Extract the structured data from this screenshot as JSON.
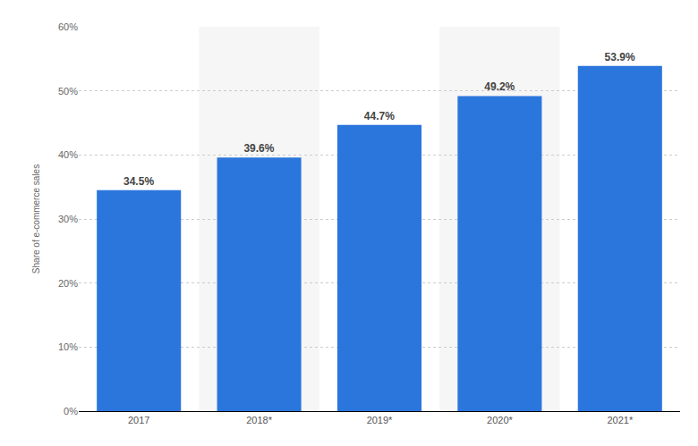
{
  "chart_data": {
    "type": "bar",
    "y_label": "Share of e-commerce sales",
    "categories": [
      "2017",
      "2018*",
      "2019*",
      "2020*",
      "2021*"
    ],
    "values": [
      34.5,
      39.6,
      44.7,
      49.2,
      53.9
    ],
    "value_labels": [
      "34.5%",
      "39.6%",
      "44.7%",
      "49.2%",
      "53.9%"
    ],
    "data_labels": true,
    "color": "#2b76dd",
    "ylim": [
      0,
      60
    ],
    "yticks": [
      {
        "value": 0,
        "label": "0%"
      },
      {
        "value": 10,
        "label": "10%"
      },
      {
        "value": 20,
        "label": "20%"
      },
      {
        "value": 30,
        "label": "30%"
      },
      {
        "value": 40,
        "label": "40%"
      },
      {
        "value": 50,
        "label": "50%"
      },
      {
        "value": 60,
        "label": "60%"
      }
    ],
    "grid": true
  }
}
